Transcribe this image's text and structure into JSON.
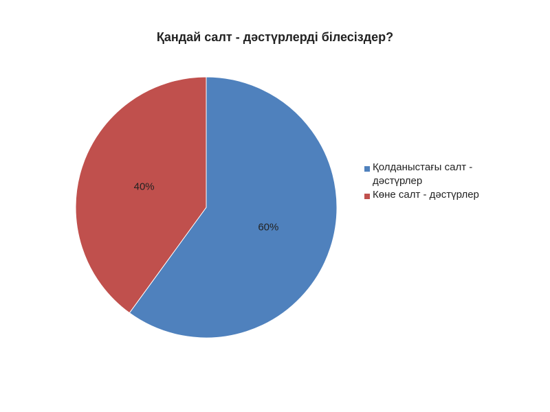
{
  "chart_data": {
    "type": "pie",
    "title": "Қандай салт - дәстүрлерді білесіздер?",
    "categories": [
      "Қолданыстағы салт - дәстүрлер",
      "Көне салт - дәстүрлер"
    ],
    "values": [
      60,
      40
    ],
    "value_labels": [
      "60%",
      "40%"
    ],
    "colors": [
      "#4f81bd",
      "#c0504d"
    ],
    "legend": "right"
  }
}
